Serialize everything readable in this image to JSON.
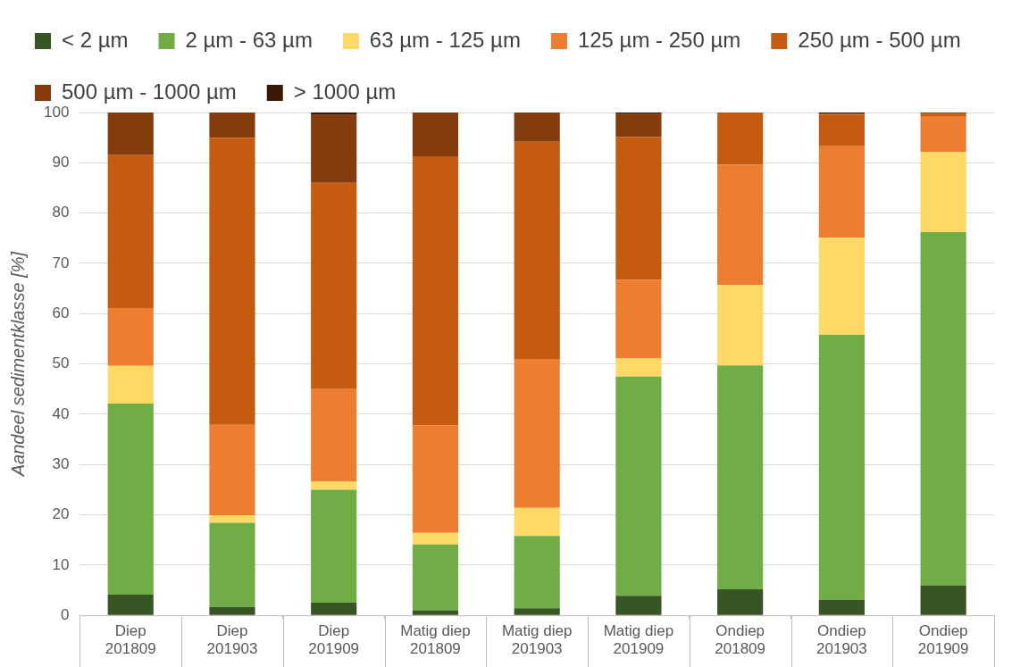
{
  "chart_data": {
    "type": "bar",
    "stacked": true,
    "ylabel": "Aandeel sedimentklasse [%]",
    "categories": [
      "Diep\n201809",
      "Diep\n201903",
      "Diep\n201909",
      "Matig diep\n201809",
      "Matig diep\n201903",
      "Matig diep\n201909",
      "Ondiep\n201809",
      "Ondiep\n201903",
      "Ondiep\n201909"
    ],
    "series": [
      {
        "name": "< 2 µm",
        "color": "#375623",
        "values": [
          4.1,
          1.7,
          2.5,
          1.0,
          1.4,
          3.9,
          5.2,
          3.1,
          6.0
        ]
      },
      {
        "name": "2 µm - 63 µm",
        "color": "#70ad47",
        "values": [
          38.0,
          16.7,
          22.5,
          13.1,
          14.4,
          43.6,
          44.5,
          52.7,
          70.2
        ]
      },
      {
        "name": "63 µm - 125 µm",
        "color": "#ffd966",
        "values": [
          7.5,
          1.5,
          1.6,
          2.3,
          5.6,
          3.6,
          16.0,
          19.3,
          16.0
        ]
      },
      {
        "name": "125 µm - 250 µm",
        "color": "#ed7d31",
        "values": [
          11.5,
          18.0,
          18.4,
          21.4,
          29.6,
          15.6,
          23.9,
          18.2,
          7.1
        ]
      },
      {
        "name": "250 µm - 500 µm",
        "color": "#c55a11",
        "values": [
          30.4,
          57.1,
          41.0,
          53.5,
          43.2,
          28.4,
          10.4,
          6.3,
          0.5
        ]
      },
      {
        "name": "500 µm - 1000 µm",
        "color": "#843c0c",
        "values": [
          8.5,
          5.0,
          13.5,
          8.7,
          5.8,
          4.6,
          0,
          0.2,
          0.2
        ]
      },
      {
        "name": "> 1000 µm",
        "color": "#3b1a05",
        "values": [
          0,
          0,
          0.5,
          0,
          0,
          0.3,
          0,
          0.2,
          0
        ]
      }
    ],
    "ylim": [
      0,
      100
    ],
    "yticks": [
      0,
      10,
      20,
      30,
      40,
      50,
      60,
      70,
      80,
      90,
      100
    ],
    "grid": "y",
    "legend": "top left"
  }
}
